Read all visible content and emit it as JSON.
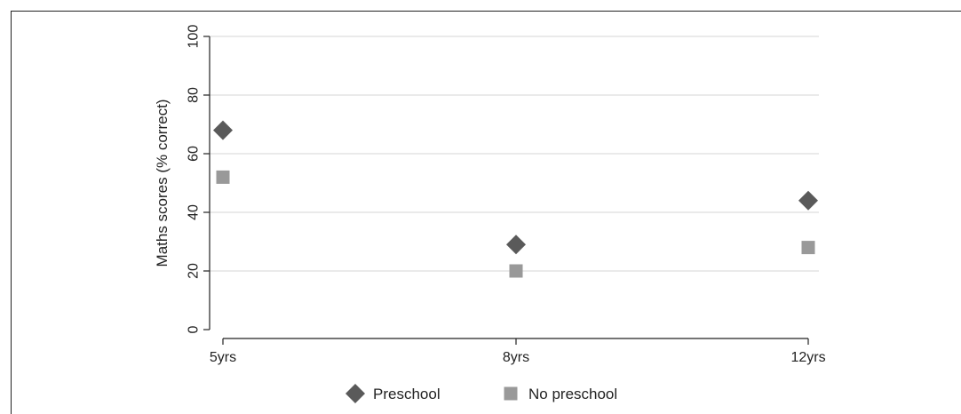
{
  "chart_data": {
    "type": "scatter",
    "categories": [
      "5yrs",
      "8yrs",
      "12yrs"
    ],
    "ylabel": "Maths scores (% correct)",
    "xlabel": "",
    "ylim": [
      0,
      100
    ],
    "yticks": [
      "0",
      "20",
      "40",
      "60",
      "80",
      "100"
    ],
    "grid": true,
    "legend_position": "bottom-center",
    "series": [
      {
        "name": "Preschool",
        "marker": "diamond",
        "color": "#5a5a5a",
        "values": [
          68,
          29,
          44
        ]
      },
      {
        "name": "No preschool",
        "marker": "square",
        "color": "#999999",
        "values": [
          52,
          20,
          28
        ]
      }
    ]
  }
}
